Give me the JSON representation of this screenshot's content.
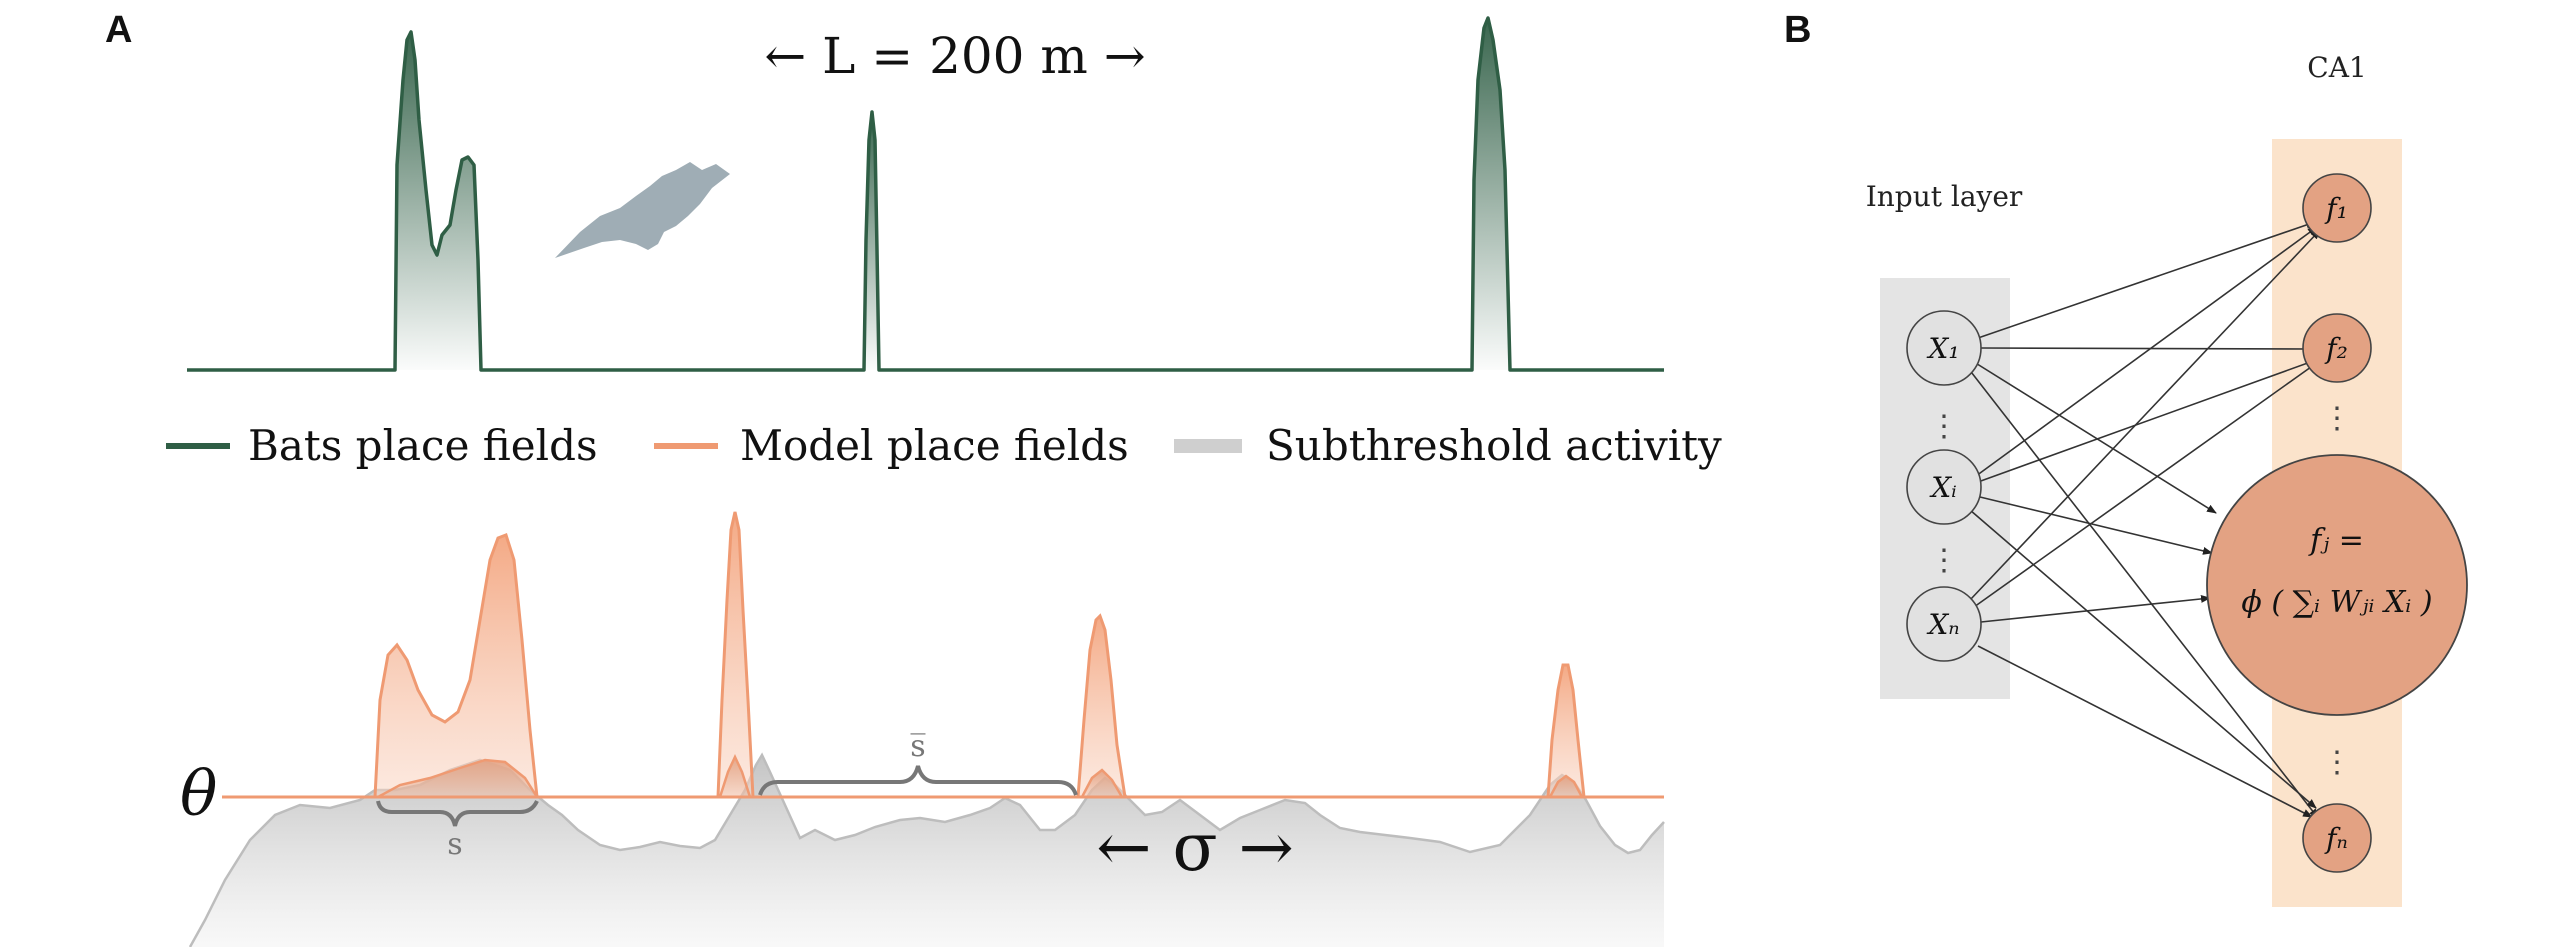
{
  "panels": {
    "a": {
      "label": "A",
      "track_label": "← L = 200 m →",
      "legend": [
        {
          "label": "Bats place fields",
          "color": "#2f5e45"
        },
        {
          "label": "Model place fields",
          "color": "#ef9a72"
        },
        {
          "label": "Subthreshold activity",
          "color": "#cfcfcf"
        }
      ],
      "theta_label": "θ",
      "gap_label_small": "s",
      "gap_label_large": "s̅",
      "sigma_label": "← σ →"
    },
    "b": {
      "label": "B",
      "ca1_label": "CA1",
      "input_layer_label": "Input layer",
      "inputs": [
        "X₁",
        "Xᵢ",
        "Xₙ"
      ],
      "outputs": [
        "f₁",
        "f₂",
        "fₙ"
      ],
      "big_node_line1": "fⱼ =",
      "big_node_line2": "ϕ ( ∑ᵢ Wⱼᵢ Xᵢ )",
      "ellipsis": "⋮"
    }
  },
  "colors": {
    "bat_line": "#2f5e45",
    "model_line": "#ef9a72",
    "model_fill": "#f6b89b",
    "sub_fill": "#d9d9d9",
    "ca1_band": "#fbe3cb",
    "input_band": "#e4e4e4",
    "node_orange": "#e3a283",
    "node_grey": "#e1e1e1",
    "bat_icon": "#9fadb5"
  }
}
